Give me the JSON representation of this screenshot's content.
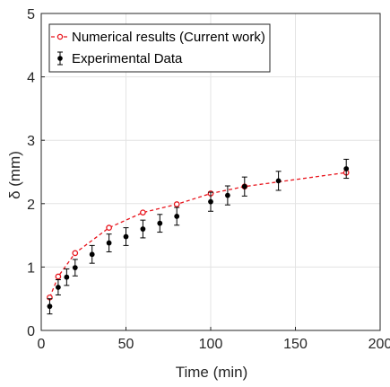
{
  "chart_data": {
    "type": "scatter",
    "title": "",
    "xlabel": "Time (min)",
    "ylabel": "δ (mm)",
    "xlim": [
      0,
      200
    ],
    "ylim": [
      0,
      5
    ],
    "xticks": [
      0,
      50,
      100,
      150,
      200
    ],
    "yticks": [
      0,
      1,
      2,
      3,
      4,
      5
    ],
    "xtick_labels": [
      "0",
      "50",
      "100",
      "150",
      "200"
    ],
    "ytick_labels": [
      "0",
      "1",
      "2",
      "3",
      "4",
      "5"
    ],
    "grid": true,
    "legend_position": "top-left",
    "series": [
      {
        "name": "Numerical results (Current work)",
        "style": "dashed line with open circle markers",
        "color": "#e8141c",
        "x": [
          5,
          10,
          20,
          40,
          60,
          80,
          100,
          120,
          180
        ],
        "y": [
          0.52,
          0.85,
          1.22,
          1.62,
          1.86,
          1.99,
          2.16,
          2.27,
          2.49
        ]
      },
      {
        "name": "Experimental Data",
        "style": "filled circle markers with error bars",
        "color": "#000000",
        "x": [
          5,
          10,
          15,
          20,
          30,
          40,
          50,
          60,
          70,
          80,
          100,
          110,
          120,
          140,
          180
        ],
        "y": [
          0.38,
          0.68,
          0.84,
          0.99,
          1.2,
          1.38,
          1.48,
          1.6,
          1.69,
          1.8,
          2.03,
          2.13,
          2.27,
          2.36,
          2.55
        ],
        "error": [
          0.12,
          0.12,
          0.13,
          0.13,
          0.14,
          0.14,
          0.14,
          0.14,
          0.14,
          0.14,
          0.15,
          0.15,
          0.15,
          0.15,
          0.15
        ]
      }
    ]
  }
}
